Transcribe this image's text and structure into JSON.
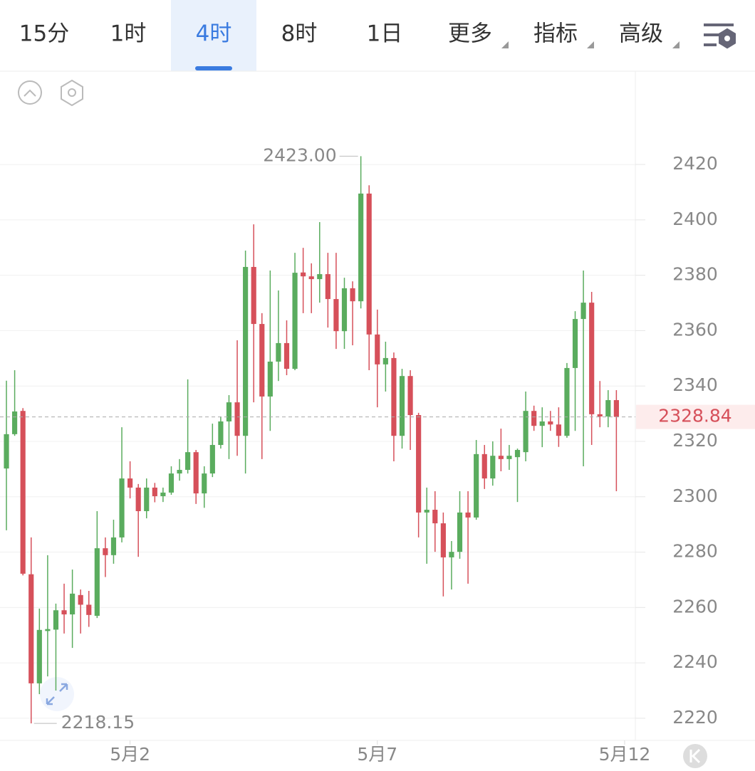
{
  "tabs": [
    "15分",
    "1时",
    "4时",
    "8时",
    "1日",
    "更多",
    "指标",
    "高级"
  ],
  "chart_data": {
    "type": "candlestick",
    "up_color": "#5aac5e",
    "down_color": "#d6505a",
    "x": [
      0,
      1,
      2,
      3,
      4,
      5,
      6,
      7,
      8,
      9,
      10,
      11,
      12,
      13,
      14,
      15,
      16,
      17,
      18,
      19,
      20,
      21,
      22,
      23,
      24,
      25,
      26,
      27,
      28,
      29,
      30,
      31,
      32,
      33,
      34,
      35,
      36,
      37,
      38,
      39,
      40,
      41,
      42,
      43,
      44,
      45,
      46,
      47,
      48,
      49,
      50,
      51,
      52,
      53,
      54,
      55,
      56,
      57,
      58,
      59,
      60,
      61,
      62,
      63,
      64,
      65,
      66,
      67,
      68,
      69,
      70,
      71,
      72,
      73,
      74
    ],
    "open": [
      2310.2,
      2322.6,
      2331,
      2272,
      2232.6,
      2251.5,
      2252,
      2259,
      2257.5,
      2264.5,
      2261,
      2257,
      2281.4,
      2278.9,
      2285.3,
      2306.6,
      2303.3,
      2294.8,
      2303.3,
      2300.2,
      2301.5,
      2308.4,
      2309.7,
      2316.1,
      2301.2,
      2308.4,
      2318.7,
      2327.2,
      2334.1,
      2322,
      2383,
      2362.4,
      2336.2,
      2348.8,
      2355.5,
      2346.2,
      2381,
      2379.6,
      2378.6,
      2380.4,
      2371.4,
      2359.8,
      2375.3,
      2370.6,
      2409.5,
      2358.6,
      2347.8,
      2350.1,
      2322,
      2343.6,
      2329.5,
      2294.3,
      2295.3,
      2290.4,
      2278.1,
      2280.1,
      2294.3,
      2292.5,
      2315.4,
      2306.6,
      2314.8,
      2313.6,
      2314.3,
      2316.1,
      2331,
      2325.6,
      2327.2,
      2326.1,
      2322,
      2346.5,
      2364.2,
      2370.1,
      2329.8,
      2329,
      2334.9
    ],
    "high": [
      2341.9,
      2345.7,
      2332,
      2285.3,
      2259.6,
      2278.9,
      2261.4,
      2268.6,
      2273.7,
      2266.5,
      2266,
      2294.8,
      2285.3,
      2291.7,
      2325.1,
      2312.8,
      2304.6,
      2306.6,
      2305,
      2303.3,
      2311,
      2313.6,
      2342.4,
      2316.9,
      2311,
      2326.4,
      2329,
      2336.7,
      2356.5,
      2388.9,
      2398.4,
      2366.3,
      2381.7,
      2374.5,
      2363.7,
      2388.1,
      2389.9,
      2384.3,
      2399.2,
      2388.1,
      2388.1,
      2379.1,
      2377.8,
      2423.0,
      2412.5,
      2367.6,
      2356,
      2352.1,
      2346.2,
      2345.7,
      2330.3,
      2303.3,
      2302,
      2294.3,
      2284,
      2302,
      2302,
      2320.5,
      2318.7,
      2320,
      2324.6,
      2318.7,
      2317.4,
      2338,
      2332.9,
      2332.3,
      2331,
      2332.3,
      2348.3,
      2367,
      2381.7,
      2374,
      2341.8,
      2338.5,
      2338.5
    ],
    "low": [
      2287.9,
      2322,
      2271.6,
      2218.15,
      2228.7,
      2235.1,
      2230,
      2250.6,
      2245.4,
      2250.6,
      2253,
      2256.2,
      2271,
      2275.8,
      2283.5,
      2299.4,
      2278.3,
      2292.2,
      2298,
      2298.1,
      2300.7,
      2305.8,
      2308.4,
      2297.4,
      2296,
      2307.1,
      2317.4,
      2313.6,
      2314.8,
      2308.4,
      2334.1,
      2313.6,
      2323.8,
      2341.8,
      2343.9,
      2345.7,
      2366.3,
      2366.3,
      2370.1,
      2361.1,
      2353.4,
      2353.4,
      2354.7,
      2368,
      2345.7,
      2332.3,
      2338,
      2312.8,
      2317.4,
      2316.9,
      2285.3,
      2275.8,
      2280.1,
      2264,
      2266.5,
      2277.6,
      2268.6,
      2291.7,
      2302.8,
      2304,
      2309.2,
      2309.7,
      2298.1,
      2312.8,
      2323.8,
      2317.9,
      2323.8,
      2318,
      2321.3,
      2323.8,
      2311,
      2318.7,
      2325.1,
      2325.1,
      2302
    ],
    "close": [
      2322.6,
      2330.8,
      2272.2,
      2232.6,
      2251.9,
      2252.2,
      2259,
      2257.5,
      2265,
      2261,
      2257.3,
      2281.4,
      2278.9,
      2285.3,
      2306.6,
      2303.3,
      2294.8,
      2303.3,
      2300.2,
      2301.5,
      2308.4,
      2309.7,
      2316.1,
      2301.2,
      2308.4,
      2318.7,
      2327.2,
      2334.1,
      2322,
      2383,
      2362.4,
      2336.2,
      2348.8,
      2355.5,
      2346.2,
      2380.9,
      2379.6,
      2378.6,
      2380.4,
      2371.4,
      2359.8,
      2375.3,
      2370.6,
      2409.5,
      2358.6,
      2347.8,
      2350.1,
      2322,
      2343.6,
      2329.5,
      2294.3,
      2295.3,
      2290.4,
      2278.1,
      2280.1,
      2294.3,
      2292.5,
      2315.4,
      2306.6,
      2314.8,
      2313.6,
      2314.8,
      2316.9,
      2331,
      2325.6,
      2327.2,
      2326.1,
      2322,
      2346.5,
      2364.2,
      2370.1,
      2329.8,
      2329,
      2334.9,
      2328.84
    ],
    "xlim": [
      -0.78,
      76.3
    ],
    "xticks": [
      {
        "value": 15,
        "label": "5月2"
      },
      {
        "value": 45,
        "label": "5月7"
      },
      {
        "value": 75,
        "label": "5月12"
      }
    ],
    "ylim": [
      2212,
      2453.7
    ],
    "yticks": [
      2220,
      2240,
      2260,
      2280,
      2300,
      2320,
      2340,
      2360,
      2380,
      2400,
      2420
    ],
    "grid": true,
    "high_label": "2423.00",
    "low_label": "2218.15",
    "last_label": "2328.84"
  }
}
